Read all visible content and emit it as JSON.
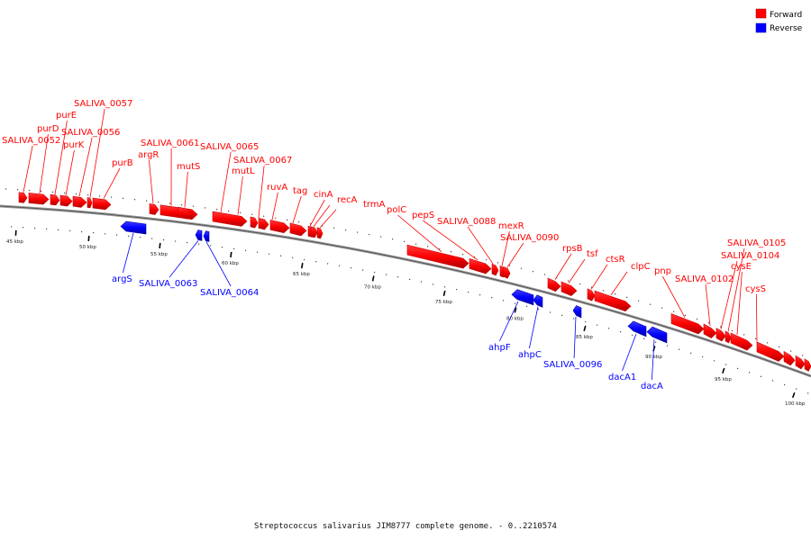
{
  "caption": "Streptococcus salivarius JIM8777 complete genome. - 0..2210574",
  "legend": [
    {
      "label": "Forward",
      "color": "#ff0000"
    },
    {
      "label": "Reverse",
      "color": "#0000ff"
    }
  ],
  "colors": {
    "forward": "#ff0000",
    "forward_dark": "#cc0000",
    "reverse": "#0000ff",
    "reverse_dark": "#0000aa",
    "backbone": "#808080"
  },
  "scale_labels": [
    "45 kbp",
    "50 kbp",
    "55 kbp",
    "60 kbp",
    "65 kbp",
    "70 kbp",
    "75 kbp",
    "80 kbp",
    "85 kbp",
    "90 kbp",
    "95 kbp",
    "100 kbp"
  ],
  "genes": [
    {
      "label": "SALIVA_0052",
      "strand": "forward"
    },
    {
      "label": "purD",
      "strand": "forward"
    },
    {
      "label": "purE",
      "strand": "forward"
    },
    {
      "label": "purK",
      "strand": "forward"
    },
    {
      "label": "SALIVA_0056",
      "strand": "forward"
    },
    {
      "label": "SALIVA_0057",
      "strand": "forward"
    },
    {
      "label": "purB",
      "strand": "forward"
    },
    {
      "label": "argS",
      "strand": "reverse"
    },
    {
      "label": "argR",
      "strand": "forward"
    },
    {
      "label": "SALIVA_0061",
      "strand": "forward"
    },
    {
      "label": "mutS",
      "strand": "forward"
    },
    {
      "label": "SALIVA_0063",
      "strand": "reverse"
    },
    {
      "label": "SALIVA_0064",
      "strand": "reverse"
    },
    {
      "label": "SALIVA_0065",
      "strand": "forward"
    },
    {
      "label": "mutL",
      "strand": "forward"
    },
    {
      "label": "SALIVA_0067",
      "strand": "forward"
    },
    {
      "label": "ruvA",
      "strand": "forward"
    },
    {
      "label": "tag",
      "strand": "forward"
    },
    {
      "label": "cinA",
      "strand": "forward"
    },
    {
      "label": "recA",
      "strand": "forward"
    },
    {
      "label": "trmA",
      "strand": "forward"
    },
    {
      "label": "polC",
      "strand": "forward"
    },
    {
      "label": "pepS",
      "strand": "forward"
    },
    {
      "label": "SALIVA_0088",
      "strand": "forward"
    },
    {
      "label": "mexR",
      "strand": "forward"
    },
    {
      "label": "SALIVA_0090",
      "strand": "forward"
    },
    {
      "label": "ahpF",
      "strand": "reverse"
    },
    {
      "label": "ahpC",
      "strand": "reverse"
    },
    {
      "label": "rpsB",
      "strand": "forward"
    },
    {
      "label": "tsf",
      "strand": "forward"
    },
    {
      "label": "SALIVA_0096",
      "strand": "reverse"
    },
    {
      "label": "ctsR",
      "strand": "forward"
    },
    {
      "label": "clpC",
      "strand": "forward"
    },
    {
      "label": "dacA1",
      "strand": "reverse"
    },
    {
      "label": "dacA",
      "strand": "reverse"
    },
    {
      "label": "pnp",
      "strand": "forward"
    },
    {
      "label": "SALIVA_0102",
      "strand": "forward"
    },
    {
      "label": "SALIVA_0104",
      "strand": "forward"
    },
    {
      "label": "SALIVA_0105",
      "strand": "forward"
    },
    {
      "label": "cysE",
      "strand": "forward"
    },
    {
      "label": "cysS",
      "strand": "forward"
    }
  ]
}
